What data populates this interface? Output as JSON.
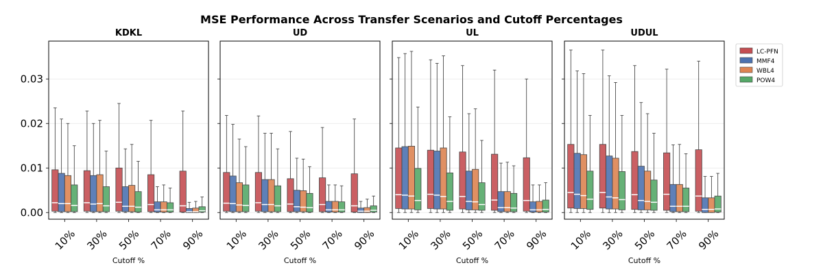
{
  "chart_data": {
    "type": "box",
    "title": "MSE Performance Across Transfer Scenarios and Cutoff Percentages",
    "categories": [
      "10%",
      "30%",
      "50%",
      "70%",
      "90%"
    ],
    "xlabel": "Cutoff %",
    "ylabel": "",
    "ylim": [
      -0.0015,
      0.0385
    ],
    "yticks": [
      0.0,
      0.01,
      0.02,
      0.03
    ],
    "ytick_labels": [
      "0.00",
      "0.01",
      "0.02",
      "0.03"
    ],
    "sharey": true,
    "grid": "horizontal",
    "legend": "top-right outside",
    "colors": {
      "LC-PFN": "#c44e52",
      "MMF4": "#4c72b0",
      "WBL4": "#dd8452",
      "POW4": "#55a868"
    },
    "series": [
      "LC-PFN",
      "MMF4",
      "WBL4",
      "POW4"
    ],
    "panels": [
      {
        "title": "KDKL",
        "boxes": {
          "LC-PFN": [
            [
              0,
              0.0003,
              0.0022,
              0.0096,
              0.0235
            ],
            [
              0,
              0.0003,
              0.0022,
              0.0094,
              0.0228
            ],
            [
              0,
              0.0003,
              0.0023,
              0.01,
              0.0245
            ],
            [
              0,
              0.0002,
              0.0018,
              0.0085,
              0.0207
            ],
            [
              0,
              0.0001,
              0.0015,
              0.0093,
              0.0228
            ]
          ],
          "MMF4": [
            [
              0,
              0.0002,
              0.002,
              0.0088,
              0.021
            ],
            [
              0,
              0.0002,
              0.0019,
              0.0083,
              0.02
            ],
            [
              0,
              0.0002,
              0.0014,
              0.0058,
              0.0143
            ],
            [
              0,
              0.0001,
              0.0006,
              0.0024,
              0.0058
            ],
            [
              0,
              0.0,
              0.0002,
              0.0009,
              0.0023
            ]
          ],
          "WBL4": [
            [
              0,
              0.0002,
              0.002,
              0.0083,
              0.02
            ],
            [
              0,
              0.0002,
              0.002,
              0.0085,
              0.0207
            ],
            [
              0,
              0.0002,
              0.0014,
              0.0061,
              0.0153
            ],
            [
              0,
              0.0001,
              0.0006,
              0.0024,
              0.0062
            ],
            [
              0,
              0.0,
              0.0002,
              0.001,
              0.0025
            ]
          ],
          "POW4": [
            [
              0,
              0.0002,
              0.0016,
              0.0062,
              0.015
            ],
            [
              0,
              0.0002,
              0.0015,
              0.0058,
              0.0138
            ],
            [
              0,
              0.0001,
              0.0012,
              0.0047,
              0.0115
            ],
            [
              0,
              0.0001,
              0.0006,
              0.0022,
              0.0055
            ],
            [
              0,
              0.0001,
              0.0004,
              0.0013,
              0.0035
            ]
          ]
        }
      },
      {
        "title": "UD",
        "boxes": {
          "LC-PFN": [
            [
              0,
              0.0003,
              0.0021,
              0.009,
              0.0218
            ],
            [
              0,
              0.0003,
              0.0022,
              0.009,
              0.0217
            ],
            [
              0,
              0.0002,
              0.0019,
              0.0076,
              0.0182
            ],
            [
              0,
              0.0002,
              0.0018,
              0.0078,
              0.0191
            ],
            [
              0,
              0.0001,
              0.0015,
              0.0087,
              0.021
            ]
          ],
          "MMF4": [
            [
              0,
              0.0002,
              0.002,
              0.0082,
              0.0198
            ],
            [
              0,
              0.0002,
              0.0018,
              0.0074,
              0.0178
            ],
            [
              0,
              0.0002,
              0.0013,
              0.005,
              0.0122
            ],
            [
              0,
              0.0001,
              0.0006,
              0.0025,
              0.0062
            ],
            [
              0,
              0.0,
              0.0003,
              0.001,
              0.0025
            ]
          ],
          "WBL4": [
            [
              0,
              0.0002,
              0.0017,
              0.0067,
              0.0165
            ],
            [
              0,
              0.0002,
              0.0018,
              0.0074,
              0.0178
            ],
            [
              0,
              0.0002,
              0.0012,
              0.0049,
              0.012
            ],
            [
              0,
              0.0001,
              0.0006,
              0.0025,
              0.0062
            ],
            [
              0,
              0.0,
              0.0003,
              0.0011,
              0.003
            ]
          ],
          "POW4": [
            [
              0,
              0.0002,
              0.0016,
              0.0062,
              0.0148
            ],
            [
              0,
              0.0002,
              0.0015,
              0.006,
              0.0143
            ],
            [
              0,
              0.0001,
              0.0011,
              0.0043,
              0.0103
            ],
            [
              0,
              0.0001,
              0.0006,
              0.0024,
              0.006
            ],
            [
              0,
              0.0001,
              0.0005,
              0.0015,
              0.0037
            ]
          ]
        }
      },
      {
        "title": "UL",
        "boxes": {
          "LC-PFN": [
            [
              0,
              0.0009,
              0.004,
              0.0145,
              0.0348
            ],
            [
              0,
              0.0009,
              0.0041,
              0.014,
              0.0343
            ],
            [
              0,
              0.0008,
              0.0036,
              0.0136,
              0.033
            ],
            [
              0,
              0.0005,
              0.0028,
              0.0131,
              0.032
            ],
            [
              0,
              0.0003,
              0.0027,
              0.0123,
              0.03
            ]
          ],
          "MMF4": [
            [
              0,
              0.0008,
              0.0039,
              0.0148,
              0.0357
            ],
            [
              0,
              0.0008,
              0.0039,
              0.0138,
              0.0335
            ],
            [
              0,
              0.0006,
              0.0025,
              0.0093,
              0.0222
            ],
            [
              0,
              0.0002,
              0.0011,
              0.0047,
              0.0111
            ],
            [
              0,
              0.0001,
              0.0006,
              0.0024,
              0.0062
            ]
          ],
          "WBL4": [
            [
              0,
              0.0008,
              0.0037,
              0.0149,
              0.0362
            ],
            [
              0,
              0.0008,
              0.0036,
              0.0145,
              0.0352
            ],
            [
              0,
              0.0006,
              0.0024,
              0.0097,
              0.0233
            ],
            [
              0,
              0.0002,
              0.0011,
              0.0047,
              0.0113
            ],
            [
              0,
              0.0001,
              0.0006,
              0.0025,
              0.0062
            ]
          ],
          "POW4": [
            [
              0,
              0.0006,
              0.0027,
              0.0099,
              0.0237
            ],
            [
              0,
              0.0005,
              0.0025,
              0.0089,
              0.0215
            ],
            [
              0,
              0.0005,
              0.0018,
              0.0067,
              0.0162
            ],
            [
              0,
              0.0002,
              0.001,
              0.0043,
              0.0105
            ],
            [
              0,
              0.0001,
              0.0007,
              0.0028,
              0.0067
            ]
          ]
        }
      },
      {
        "title": "UDUL",
        "boxes": {
          "LC-PFN": [
            [
              0,
              0.001,
              0.0045,
              0.0153,
              0.0365
            ],
            [
              0,
              0.001,
              0.0045,
              0.0153,
              0.0365
            ],
            [
              0,
              0.0007,
              0.004,
              0.0137,
              0.033
            ],
            [
              0,
              0.0005,
              0.0041,
              0.0134,
              0.0322
            ],
            [
              0,
              0.0003,
              0.0037,
              0.0141,
              0.034
            ]
          ],
          "MMF4": [
            [
              0,
              0.0009,
              0.0041,
              0.0133,
              0.0318
            ],
            [
              0,
              0.0008,
              0.0035,
              0.0127,
              0.0307
            ],
            [
              0,
              0.0006,
              0.0027,
              0.0104,
              0.0247
            ],
            [
              0,
              0.0002,
              0.0014,
              0.0063,
              0.0152
            ],
            [
              0,
              0.0,
              0.0007,
              0.0033,
              0.0081
            ]
          ],
          "WBL4": [
            [
              0,
              0.0009,
              0.0038,
              0.013,
              0.0312
            ],
            [
              0,
              0.0008,
              0.0033,
              0.0122,
              0.0292
            ],
            [
              0,
              0.0006,
              0.0025,
              0.0093,
              0.0222
            ],
            [
              0,
              0.0002,
              0.0014,
              0.0063,
              0.0153
            ],
            [
              0,
              0.0,
              0.0007,
              0.0033,
              0.0081
            ]
          ],
          "POW4": [
            [
              0,
              0.0007,
              0.003,
              0.0093,
              0.0218
            ],
            [
              0,
              0.0006,
              0.0029,
              0.0092,
              0.0218
            ],
            [
              0,
              0.0005,
              0.0023,
              0.0073,
              0.0178
            ],
            [
              0,
              0.0002,
              0.0014,
              0.0055,
              0.0132
            ],
            [
              0,
              0.0001,
              0.0008,
              0.0037,
              0.0088
            ]
          ]
        }
      }
    ]
  }
}
